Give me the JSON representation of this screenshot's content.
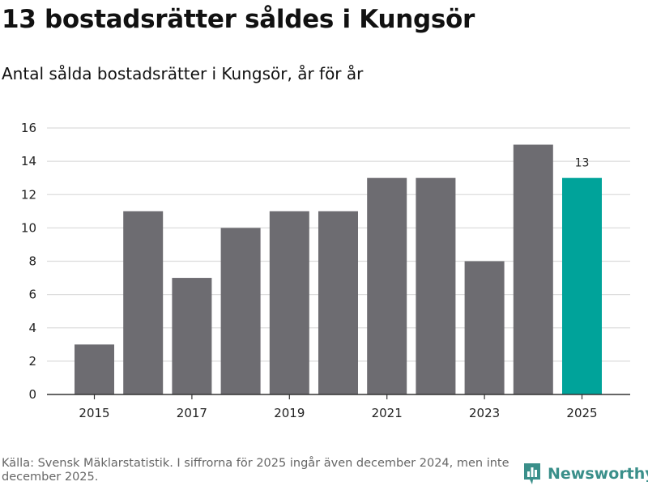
{
  "header": {
    "title": "13 bostadsrätter såldes i Kungsör",
    "subtitle": "Antal sålda bostadsrätter i Kungsör, år för år"
  },
  "footer": {
    "source": "Källa: Svensk Mäklarstatistik. I siffrorna för 2025 ingår även december 2024, men inte december 2025.",
    "logo_text": "Newsworthy"
  },
  "colors": {
    "bar": "#6d6c71",
    "highlight": "#00a39a",
    "grid": "#dcdcdc",
    "axis": "#333333",
    "brand": "#3a8f8a"
  },
  "chart_data": {
    "type": "bar",
    "title": "13 bostadsrätter såldes i Kungsör",
    "subtitle": "Antal sålda bostadsrätter i Kungsör, år för år",
    "xlabel": "",
    "ylabel": "",
    "categories": [
      "2015",
      "2016",
      "2017",
      "2018",
      "2019",
      "2020",
      "2021",
      "2022",
      "2023",
      "2024",
      "2025"
    ],
    "values": [
      3,
      11,
      7,
      10,
      11,
      11,
      13,
      13,
      8,
      15,
      13
    ],
    "x_tick_labels": [
      "2015",
      "2017",
      "2019",
      "2021",
      "2023",
      "2025"
    ],
    "y_ticks": [
      0,
      2,
      4,
      6,
      8,
      10,
      12,
      14,
      16
    ],
    "ylim": [
      0,
      16
    ],
    "highlight_category": "2025",
    "data_labels": [
      {
        "category": "2025",
        "text": "13"
      }
    ],
    "grid": true,
    "legend": "none"
  }
}
